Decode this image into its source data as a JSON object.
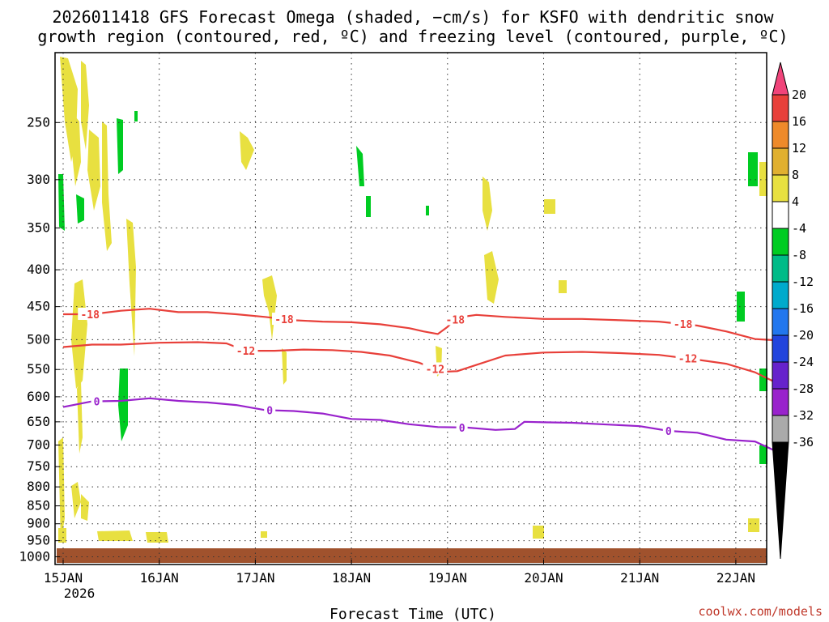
{
  "chart_data": {
    "type": "time-height",
    "title_line1": "2026011418 GFS Forecast Omega (shaded, −cm/s) for KSFO with dendritic snow",
    "title_line2": "growth region (contoured, red, ºC) and freezing level (contoured, purple, ºC)",
    "xlabel": "Forecast Time (UTC)",
    "x_tick_labels": [
      "15JAN",
      "16JAN",
      "17JAN",
      "18JAN",
      "19JAN",
      "20JAN",
      "21JAN",
      "22JAN"
    ],
    "x_year_label": "2026",
    "x_range_days": [
      0.0,
      7.53
    ],
    "y_tick_labels": [
      "250",
      "300",
      "350",
      "400",
      "450",
      "500",
      "550",
      "600",
      "650",
      "700",
      "750",
      "800",
      "850",
      "900",
      "950",
      "1000"
    ],
    "y_range_hpa": [
      200,
      1025
    ],
    "y_axis": "log pressure (hPa)",
    "grid": true,
    "colorbar": {
      "labels": [
        "20",
        "16",
        "12",
        "8",
        "4",
        "-4",
        "-8",
        "-12",
        "-16",
        "-20",
        "-24",
        "-28",
        "-32",
        "-36"
      ],
      "colors": [
        "#f0447a",
        "#e8403a",
        "#ee8a2a",
        "#e0b030",
        "#e8e040",
        "#ffffff",
        "#00cc22",
        "#00bb88",
        "#00aacc",
        "#2277ee",
        "#2244dd",
        "#6622cc",
        "#9922cc",
        "#aaaaaa",
        "#000000"
      ]
    },
    "series": [
      {
        "name": "-18 C isotherm",
        "color": "#e8403a",
        "label": "-18",
        "label_at": [
          0.28,
          2.3,
          4.08,
          6.45
        ],
        "x": [
          0,
          0.3,
          0.6,
          0.9,
          1.2,
          1.5,
          1.8,
          2.1,
          2.4,
          2.7,
          3.0,
          3.3,
          3.6,
          3.75,
          3.9,
          4.0,
          4.1,
          4.3,
          4.6,
          5.0,
          5.4,
          5.8,
          6.2,
          6.6,
          6.9,
          7.2,
          7.53
        ],
        "y": [
          461,
          461,
          456,
          453,
          458,
          458,
          461,
          465,
          470,
          472,
          473,
          476,
          482,
          487,
          491,
          480,
          466,
          462,
          465,
          468,
          468,
          470,
          472,
          478,
          487,
          499,
          502
        ]
      },
      {
        "name": "-12 C isotherm",
        "color": "#e8403a",
        "label": "-12",
        "label_at": [
          1.9,
          3.87,
          6.5
        ],
        "x": [
          0,
          0.3,
          0.6,
          1.0,
          1.4,
          1.7,
          1.9,
          2.2,
          2.5,
          2.8,
          3.1,
          3.4,
          3.7,
          3.95,
          4.1,
          4.3,
          4.6,
          5.0,
          5.4,
          5.8,
          6.2,
          6.6,
          6.9,
          7.2,
          7.4,
          7.53
        ],
        "y": [
          512,
          508,
          508,
          505,
          504,
          506,
          518,
          518,
          516,
          517,
          520,
          526,
          538,
          554,
          553,
          542,
          526,
          521,
          520,
          522,
          525,
          533,
          540,
          555,
          572,
          574
        ]
      },
      {
        "name": "0 C freezing level",
        "color": "#9922cc",
        "label": "0",
        "label_at": [
          0.35,
          2.15,
          4.15,
          6.3
        ],
        "x": [
          0,
          0.3,
          0.6,
          0.9,
          1.2,
          1.5,
          1.8,
          2.1,
          2.4,
          2.7,
          3.0,
          3.3,
          3.6,
          3.9,
          4.2,
          4.5,
          4.7,
          4.8,
          5.0,
          5.3,
          5.6,
          6.0,
          6.3,
          6.6,
          6.9,
          7.2,
          7.4,
          7.53
        ],
        "y": [
          620,
          609,
          608,
          603,
          608,
          611,
          616,
          626,
          628,
          633,
          644,
          646,
          655,
          661,
          662,
          667,
          665,
          650,
          651,
          652,
          655,
          659,
          669,
          673,
          688,
          692,
          712,
          720
        ]
      }
    ],
    "shading_note": "scattered omega patches: yellow = rising motion, green = sinking motion"
  },
  "footer": {
    "source": "coolwx.com/models"
  }
}
